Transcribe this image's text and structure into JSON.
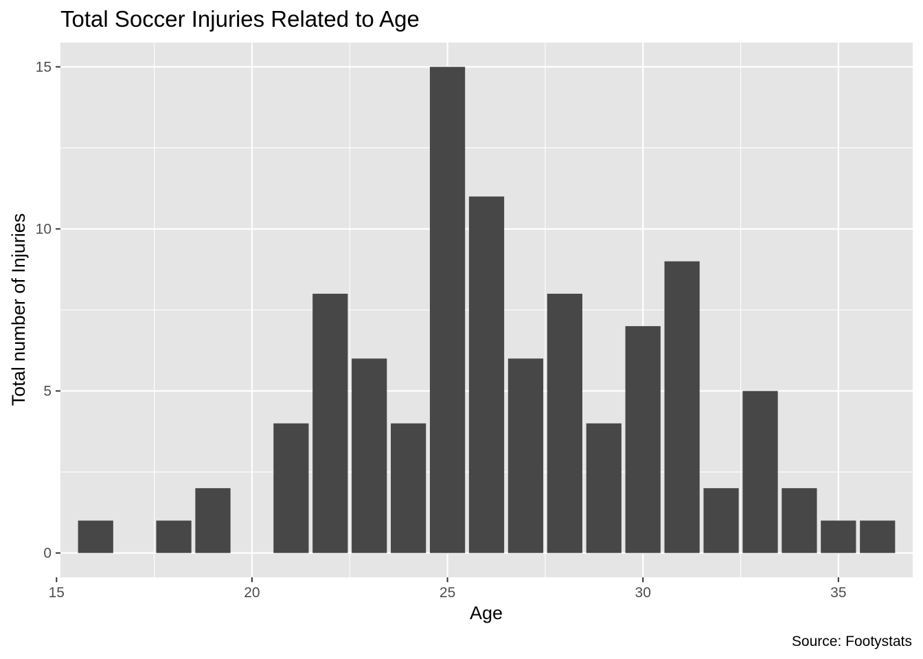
{
  "chart_data": {
    "type": "bar",
    "title": "Total Soccer Injuries Related to Age",
    "xlabel": "Age",
    "ylabel": "Total number of Injuries",
    "caption": "Source: Footystats",
    "x": [
      16,
      18,
      19,
      21,
      22,
      23,
      24,
      25,
      26,
      27,
      28,
      29,
      30,
      31,
      32,
      33,
      34,
      35,
      36
    ],
    "values": [
      1,
      1,
      2,
      4,
      8,
      6,
      4,
      15,
      11,
      6,
      8,
      4,
      7,
      9,
      2,
      5,
      2,
      1,
      1
    ],
    "xlim": [
      15.1,
      36.9
    ],
    "ylim": [
      -0.75,
      15.75
    ],
    "x_ticks": [
      15,
      20,
      25,
      30,
      35
    ],
    "y_ticks": [
      0,
      5,
      10,
      15
    ],
    "grid": true,
    "legend": "none",
    "colors": {
      "bar": "#474747",
      "panel": "#e5e5e5",
      "grid": "#ffffff",
      "tick_text": "#4d4d4d"
    }
  }
}
